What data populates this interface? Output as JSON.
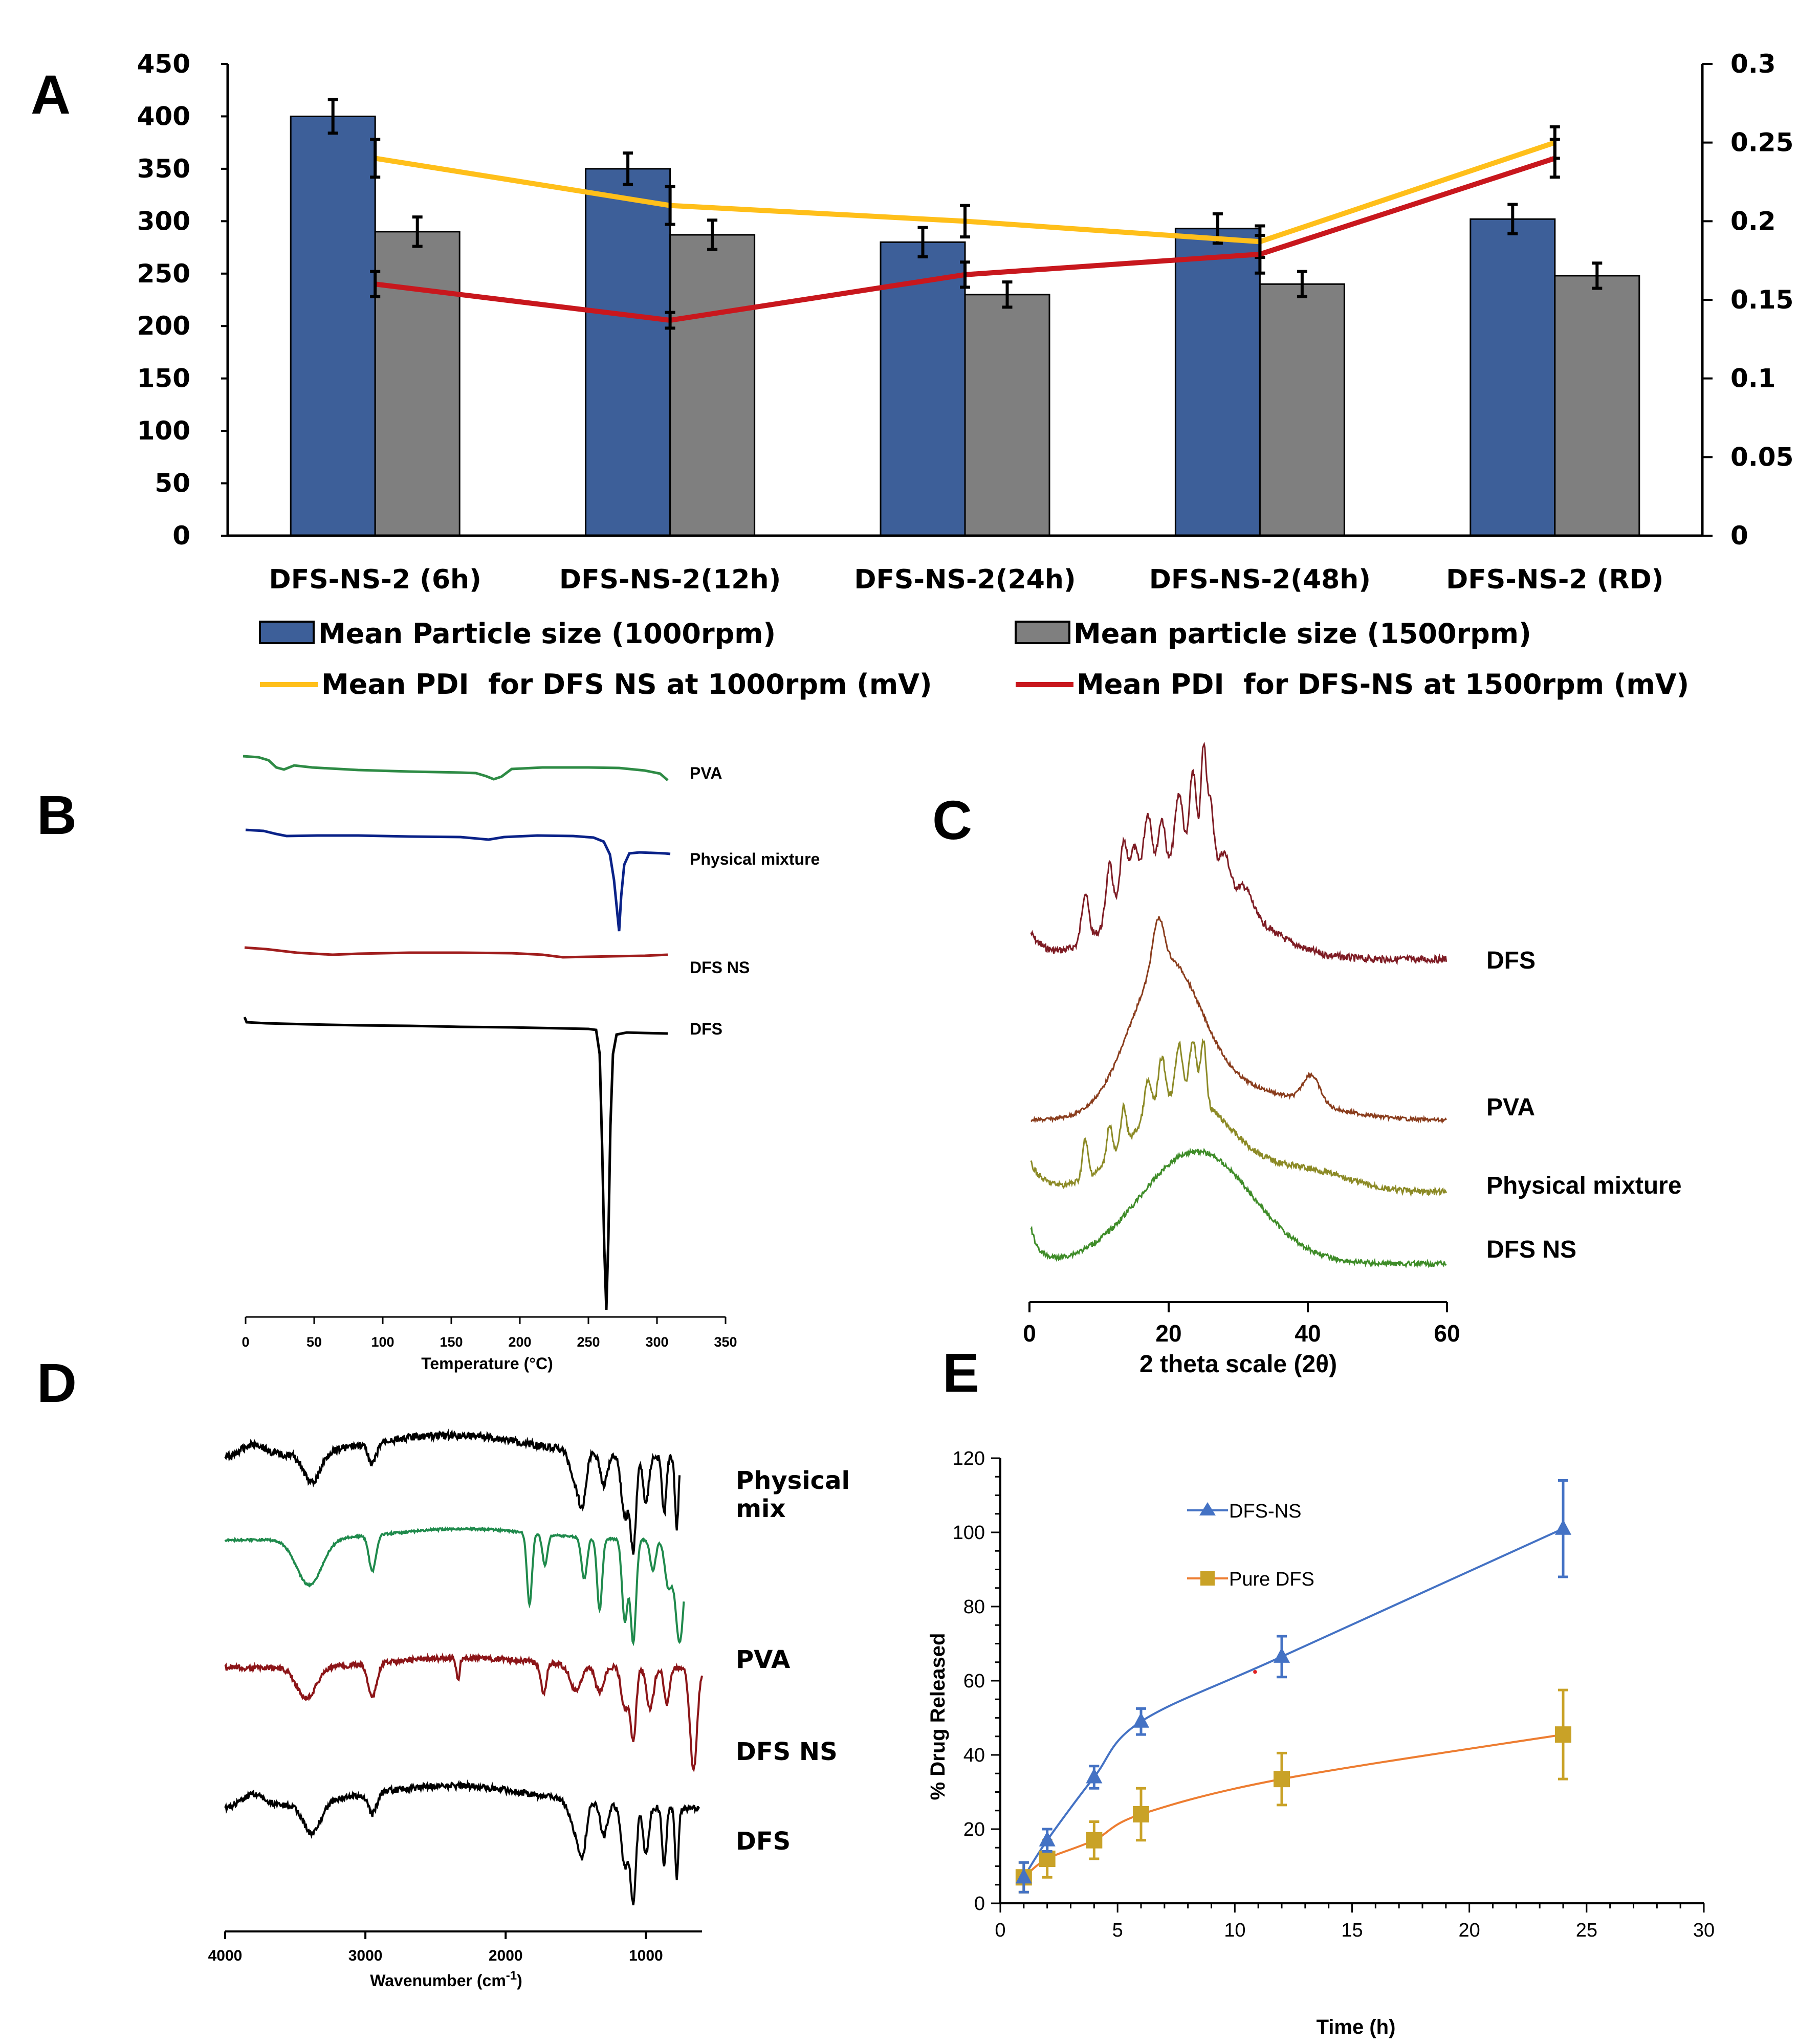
{
  "colors": {
    "blue_bar": "#3d5f99",
    "gray_bar": "#7f7f7f",
    "yellow_line": "#ffbf1a",
    "red_line": "#c8171d",
    "pva_dsc": "#2e8b45",
    "physmix_dsc": "#0a2288",
    "dfsns_dsc": "#a01d1d",
    "dfs_dsc": "#000000",
    "xrd_dfs": "#7e1c24",
    "xrd_pva": "#8a3d1d",
    "xrd_pm": "#8c8a26",
    "xrd_ns": "#3e8c28",
    "ftir_pm": "#000000",
    "ftir_pva": "#1f8a4c",
    "ftir_ns": "#8c1518",
    "ftir_dfs": "#000000",
    "release_ns": "#4472c4",
    "release_pure_line": "#ed7d31",
    "release_pure_marker": "#c9a227"
  },
  "panels": {
    "a": "A",
    "b": "B",
    "c": "C",
    "d": "D",
    "e": "E"
  },
  "chart_data": [
    {
      "id": "A",
      "type": "bar",
      "categories": [
        "DFS-NS-2 (6h)",
        "DFS-NS-2(12h)",
        "DFS-NS-2(24h)",
        "DFS-NS-2(48h)",
        "DFS-NS-2 (RD)"
      ],
      "y_ticks": [
        "0",
        "50",
        "100",
        "150",
        "200",
        "250",
        "300",
        "350",
        "400",
        "450"
      ],
      "y2_ticks": [
        "0",
        "0.05",
        "0.1",
        "0.15",
        "0.2",
        "0.25",
        "0.3"
      ],
      "ylim": [
        0,
        450
      ],
      "y2lim": [
        0,
        0.3
      ],
      "series": [
        {
          "name": "Mean Particle size (1000rpm)",
          "kind": "bar",
          "axis": "left",
          "values": [
            400,
            350,
            280,
            293,
            302
          ],
          "errors": [
            16,
            15,
            14,
            14,
            14
          ]
        },
        {
          "name": "Mean particle size (1500rpm)",
          "kind": "bar",
          "axis": "left",
          "values": [
            290,
            287,
            230,
            240,
            248
          ],
          "errors": [
            14,
            14,
            12,
            12,
            12
          ]
        },
        {
          "name": "Mean PDI  for DFS NS at 1000rpm (mV)",
          "kind": "line",
          "axis": "right",
          "values": [
            0.24,
            0.21,
            0.2,
            0.187,
            0.25
          ],
          "errors": [
            0.012,
            0.012,
            0.01,
            0.01,
            0.01
          ]
        },
        {
          "name": "Mean PDI  for DFS-NS at 1500rpm (mV)",
          "kind": "line",
          "axis": "right",
          "values": [
            0.16,
            0.137,
            0.166,
            0.179,
            0.24
          ],
          "errors": [
            0.008,
            0.005,
            0.008,
            0.012,
            0.012
          ]
        }
      ]
    },
    {
      "id": "B",
      "type": "line",
      "xlabel": "Temperature (°C)",
      "x_ticks": [
        "0",
        "50",
        "100",
        "150",
        "200",
        "250",
        "300",
        "350"
      ],
      "xlim": [
        0,
        350
      ],
      "series": [
        {
          "name": "PVA"
        },
        {
          "name": "Physical mixture"
        },
        {
          "name": "DFS NS"
        },
        {
          "name": "DFS"
        }
      ]
    },
    {
      "id": "C",
      "type": "line",
      "xlabel": "2 theta scale (2θ)",
      "x_ticks": [
        "0",
        "20",
        "40",
        "60"
      ],
      "xlim": [
        0,
        60
      ],
      "series": [
        {
          "name": "DFS"
        },
        {
          "name": "PVA"
        },
        {
          "name": "Physical mixture"
        },
        {
          "name": "DFS NS"
        }
      ]
    },
    {
      "id": "D",
      "type": "line",
      "xlabel_main": "Wavenumber (cm",
      "xlabel_sup": "-1",
      "xlabel_end": ")",
      "x_ticks": [
        "4000",
        "3000",
        "2000",
        "1000"
      ],
      "xlim": [
        4000,
        600
      ],
      "series": [
        {
          "name_line1": "Physical",
          "name_line2": "mix"
        },
        {
          "name": "PVA"
        },
        {
          "name": "DFS NS"
        },
        {
          "name": "DFS"
        }
      ]
    },
    {
      "id": "E",
      "type": "line",
      "xlabel": "Time (h)",
      "ylabel": "% Drug Released",
      "x_ticks": [
        "0",
        "5",
        "10",
        "15",
        "20",
        "25",
        "30"
      ],
      "y_ticks": [
        "0",
        "20",
        "40",
        "60",
        "80",
        "100",
        "120"
      ],
      "xlim": [
        0,
        30
      ],
      "ylim": [
        0,
        120
      ],
      "series": [
        {
          "name": "DFS-NS",
          "x": [
            1,
            2,
            4,
            6,
            12,
            24
          ],
          "y": [
            7,
            17,
            34,
            49,
            66.5,
            101
          ],
          "errors": [
            4,
            3,
            3,
            3.5,
            5.5,
            13
          ]
        },
        {
          "name": "Pure DFS",
          "x": [
            1,
            2,
            4,
            6,
            12,
            24
          ],
          "y": [
            7,
            12,
            17,
            24,
            33.5,
            45.5
          ],
          "errors": [
            4,
            5,
            5,
            7,
            7,
            12
          ]
        }
      ]
    }
  ]
}
